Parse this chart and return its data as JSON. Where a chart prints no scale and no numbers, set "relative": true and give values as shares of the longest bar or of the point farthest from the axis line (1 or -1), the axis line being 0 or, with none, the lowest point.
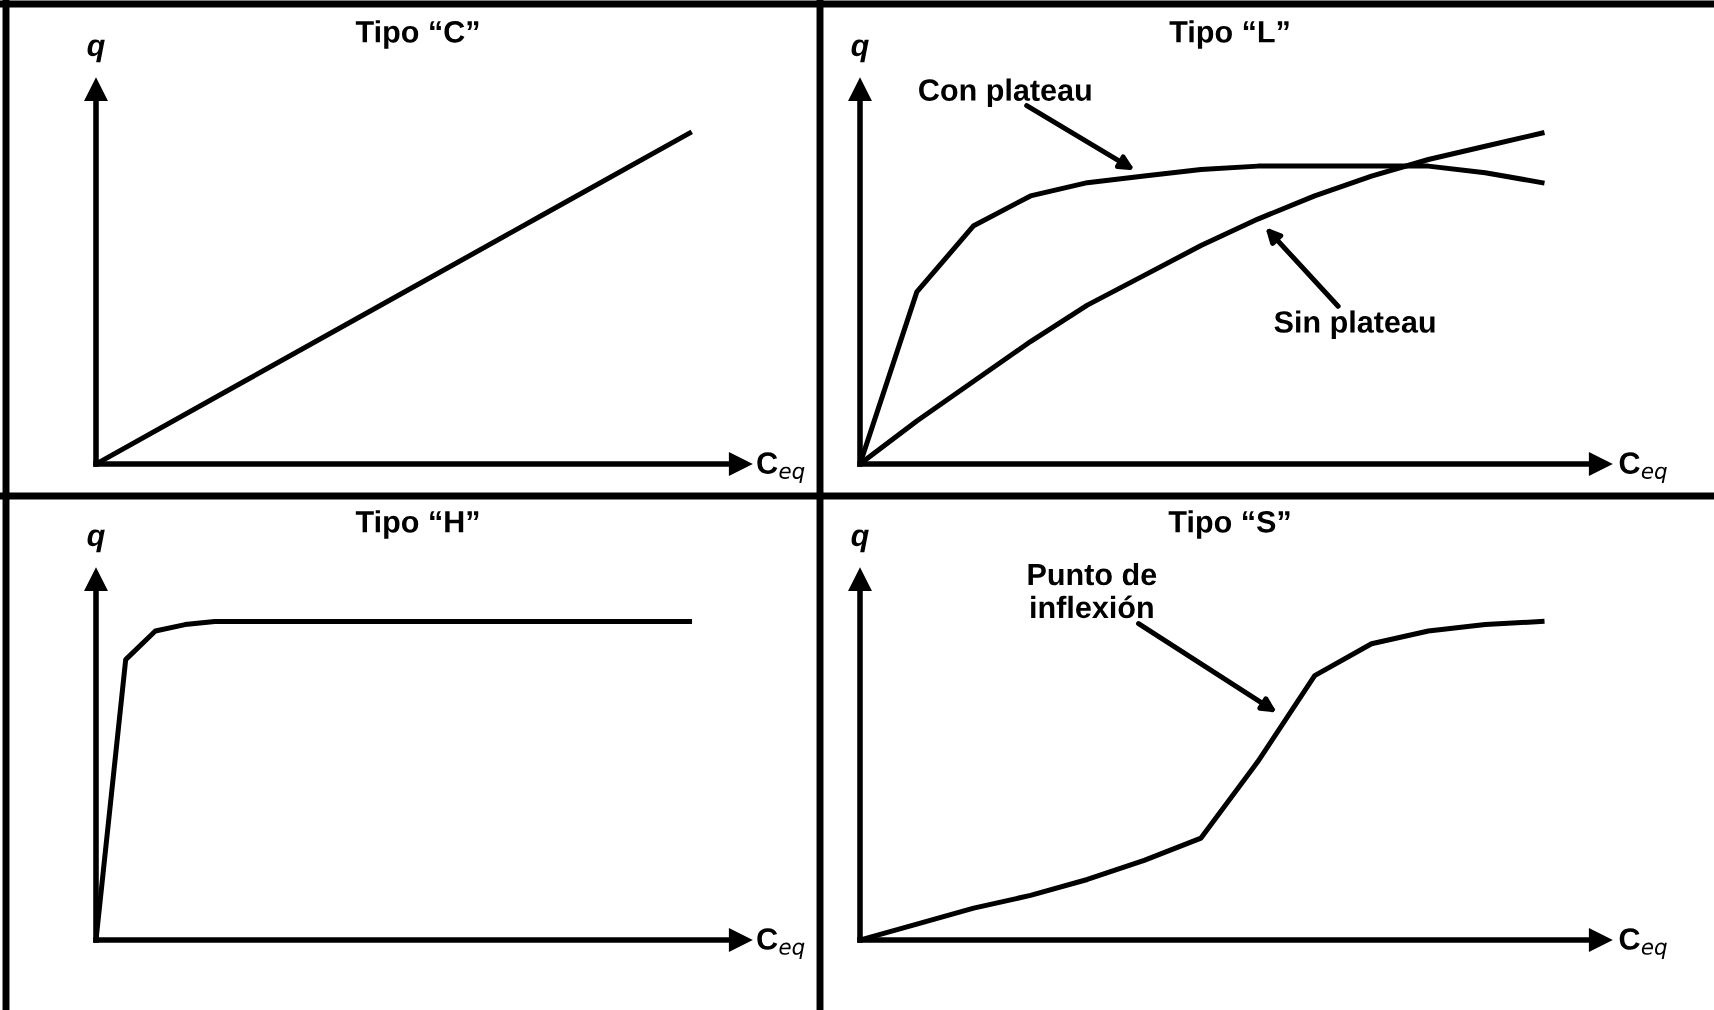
{
  "chart_data": [
    {
      "type": "line",
      "title": "Tipo “C”",
      "xlabel": "C$_{eq}$",
      "ylabel": "q",
      "relative": true,
      "categories": [
        null,
        null,
        null,
        null,
        null
      ],
      "series": [
        {
          "color": "#000000",
          "values": [
            0,
            0.25,
            0.5,
            0.75,
            1
          ]
        }
      ]
    },
    {
      "type": "line",
      "title": "Tipo “L”",
      "xlabel": "C$_{eq}$",
      "ylabel": "q",
      "relative": true,
      "categories": [
        null,
        null,
        null,
        null,
        null,
        null,
        null,
        null,
        null,
        null,
        null,
        null,
        null
      ],
      "series": [
        {
          "name": "Con plateau",
          "color": "#000000",
          "values": [
            0,
            0.52,
            0.72,
            0.81,
            0.85,
            0.87,
            0.89,
            0.9,
            0.9,
            0.9,
            0.9,
            0.88,
            0.85
          ]
        },
        {
          "name": "Sin plateau",
          "color": "#000000",
          "values": [
            0,
            0.13,
            0.25,
            0.37,
            0.48,
            0.57,
            0.66,
            0.74,
            0.81,
            0.87,
            0.92,
            0.96,
            1
          ]
        }
      ]
    },
    {
      "type": "line",
      "title": "Tipo “H”",
      "xlabel": "C$_{eq}$",
      "ylabel": "q",
      "relative": true,
      "categories": [
        null,
        null,
        null,
        null,
        null,
        null,
        null,
        null,
        null,
        null,
        null,
        null,
        null,
        null,
        null,
        null,
        null,
        null,
        null,
        null,
        null
      ],
      "series": [
        {
          "color": "#000000",
          "values": [
            0,
            0.88,
            0.97,
            0.99,
            1,
            1,
            1,
            1,
            1,
            1,
            1,
            1,
            1,
            1,
            1,
            1,
            1,
            1,
            1,
            1,
            1
          ]
        }
      ]
    },
    {
      "type": "line",
      "title": "Tipo “S”",
      "xlabel": "C$_{eq}$",
      "ylabel": "q",
      "relative": true,
      "categories": [
        null,
        null,
        null,
        null,
        null,
        null,
        null,
        null,
        null,
        null,
        null,
        null,
        null
      ],
      "annotations": [
        "Punto de\ninflexión"
      ],
      "series": [
        {
          "color": "#000000",
          "values": [
            0,
            0.05,
            0.1,
            0.14,
            0.19,
            0.25,
            0.32,
            0.56,
            0.83,
            0.93,
            0.97,
            0.99,
            1
          ]
        }
      ]
    }
  ]
}
